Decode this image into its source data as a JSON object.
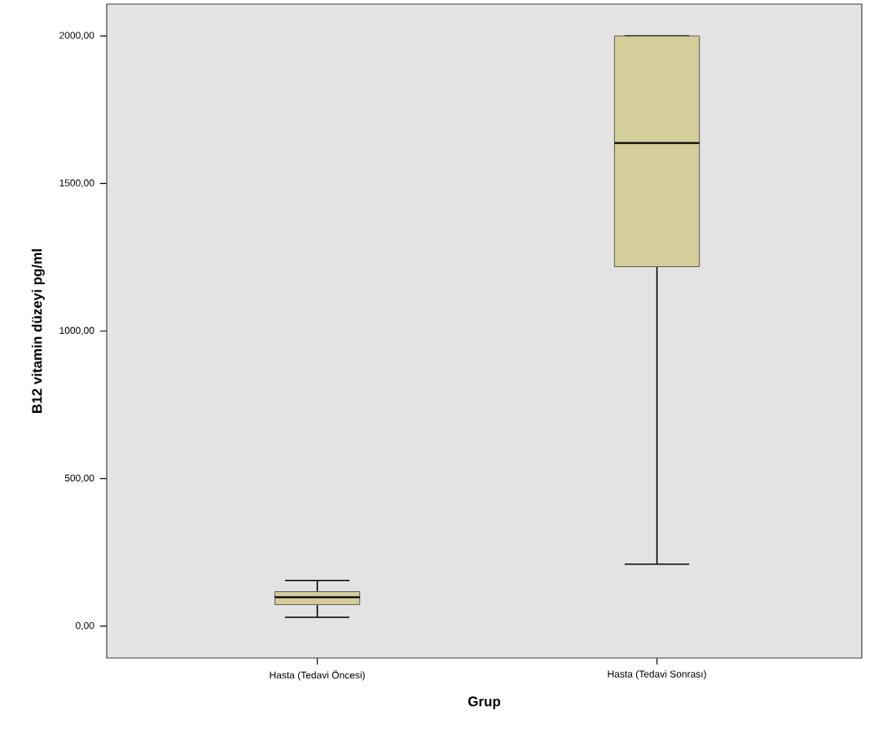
{
  "chart_data": {
    "type": "box",
    "xlabel": "Grup",
    "ylabel": "B12 vitamin düzeyi pg/ml",
    "categories": [
      "Hasta (Tedavi Öncesi)",
      "Hasta (Tedavi Sonrası)"
    ],
    "color": "#d3ce9a",
    "boxes": [
      {
        "low": 30,
        "q1": 73,
        "median": 98,
        "q3": 117,
        "high": 155
      },
      {
        "low": 210,
        "q1": 1218,
        "median": 1637,
        "q3": 2000,
        "high": 2000
      }
    ],
    "ylim": [
      -108,
      2108
    ],
    "yticks": [
      {
        "value": 0,
        "label": "0,00"
      },
      {
        "value": 500,
        "label": "500,00"
      },
      {
        "value": 1000,
        "label": "1000,00"
      },
      {
        "value": 1500,
        "label": "1500,00"
      },
      {
        "value": 2000,
        "label": "2000,00"
      }
    ]
  }
}
